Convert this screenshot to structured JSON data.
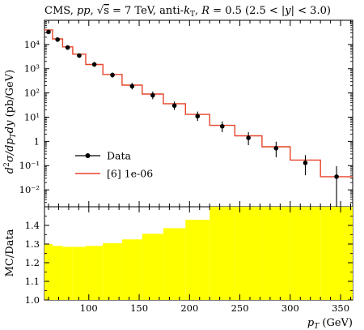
{
  "chart_data": [
    {
      "type": "line",
      "title": "CMS, pp, √s = 7 TeV, anti-kT, R = 0.5 (2.5 < |y| < 3.0)",
      "ylabel": "d²σ/dpTdy (pb/GeV)",
      "xlabel": "",
      "yscale": "log",
      "xlim": [
        56,
        362
      ],
      "ylim": [
        0.002,
        100000
      ],
      "yticks": [
        "10⁴",
        "10³",
        "10²",
        "10¹",
        "1",
        "10⁻¹",
        "10⁻²"
      ],
      "legend": {
        "placement": "lower-left",
        "entries": [
          "Data",
          "[6] 1e-06"
        ]
      },
      "bin_edges": [
        56,
        64,
        74,
        84,
        97,
        114,
        133,
        153,
        174,
        196,
        220,
        245,
        272,
        300,
        330,
        362
      ],
      "series": [
        {
          "name": "Data",
          "style": "points-with-errors",
          "color": "#000000",
          "x": [
            60,
            69,
            79,
            90.5,
            105.5,
            123.5,
            143,
            163.5,
            185,
            208,
            232.5,
            258.5,
            286,
            315,
            346
          ],
          "y": [
            33000,
            16000,
            7500,
            3500,
            1500,
            550,
            190,
            80,
            30,
            11,
            4.2,
            1.4,
            0.52,
            0.13,
            0.035
          ],
          "err_lo": [
            4000,
            2000,
            1000,
            600,
            300,
            120,
            50,
            25,
            10,
            4,
            1.8,
            0.7,
            0.3,
            0.09,
            0.033
          ],
          "err_hi": [
            5000,
            2500,
            1200,
            800,
            400,
            150,
            70,
            35,
            14,
            6,
            2.5,
            1.0,
            0.45,
            0.14,
            0.06
          ]
        },
        {
          "name": "[6] 1e-06",
          "style": "histogram",
          "color": "#e8432a",
          "y": [
            40000,
            17000,
            8000,
            4000,
            1500,
            580,
            210,
            90,
            36,
            13,
            4.6,
            1.7,
            0.6,
            0.17,
            0.035
          ]
        }
      ]
    },
    {
      "type": "area",
      "ylabel": "MC/Data",
      "xlabel": "pT (GeV)",
      "xlim": [
        56,
        362
      ],
      "ylim": [
        1.0,
        1.5
      ],
      "yticks": [
        "1.0",
        "1.1",
        "1.2",
        "1.3",
        "1.4"
      ],
      "xticks": [
        "100",
        "150",
        "200",
        "250",
        "300",
        "350"
      ],
      "fill_color": "#ffff00",
      "bin_edges": [
        56,
        64,
        74,
        84,
        97,
        114,
        133,
        153,
        174,
        196,
        220,
        245,
        272,
        300,
        330,
        362
      ],
      "values": [
        1.3,
        1.29,
        1.285,
        1.285,
        1.29,
        1.305,
        1.325,
        1.355,
        1.385,
        1.43,
        1.5,
        1.5,
        1.5,
        1.5,
        1.5
      ]
    }
  ]
}
